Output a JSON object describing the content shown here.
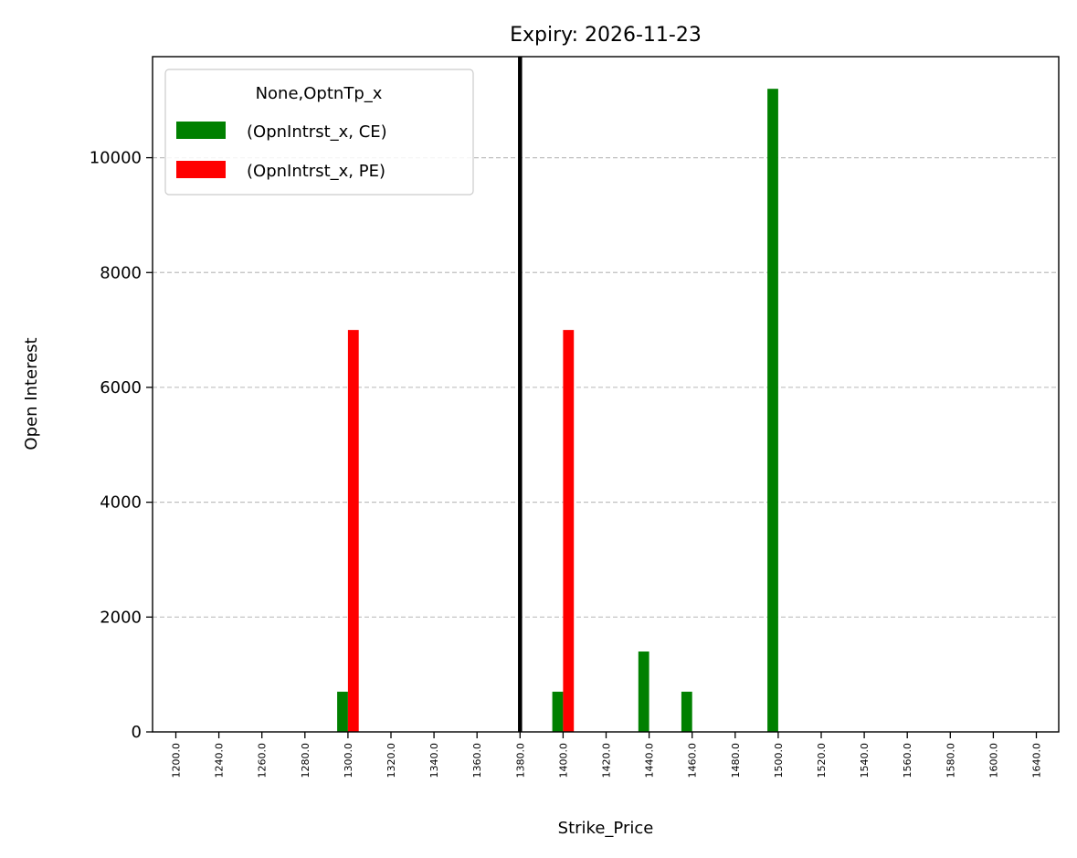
{
  "chart_data": {
    "type": "bar",
    "title": "Expiry: 2026-11-23",
    "xlabel": "Strike_Price",
    "ylabel": "Open Interest",
    "categories": [
      "1200.0",
      "1240.0",
      "1260.0",
      "1280.0",
      "1300.0",
      "1320.0",
      "1340.0",
      "1360.0",
      "1380.0",
      "1400.0",
      "1420.0",
      "1440.0",
      "1460.0",
      "1480.0",
      "1500.0",
      "1520.0",
      "1540.0",
      "1560.0",
      "1580.0",
      "1600.0",
      "1640.0"
    ],
    "series": [
      {
        "name": "(OpnIntrst_x, CE)",
        "color": "#008000",
        "values": [
          0,
          0,
          0,
          0,
          700,
          0,
          0,
          0,
          0,
          700,
          0,
          1400,
          700,
          0,
          11200,
          0,
          0,
          0,
          0,
          0,
          0
        ]
      },
      {
        "name": "(OpnIntrst_x, PE)",
        "color": "#ff0000",
        "values": [
          0,
          0,
          0,
          0,
          7000,
          0,
          0,
          0,
          0,
          7000,
          0,
          0,
          0,
          0,
          0,
          0,
          0,
          0,
          0,
          0,
          0
        ]
      }
    ],
    "legend_title": "None,OptnTp_x",
    "legend_position": "top-left",
    "ylim": [
      0,
      11760
    ],
    "yticks": [
      0,
      2000,
      4000,
      6000,
      8000,
      10000
    ],
    "ytick_labels": [
      "0",
      "2000",
      "4000",
      "6000",
      "8000",
      "10000"
    ],
    "grid": "y-dashed",
    "vertical_line": {
      "category": "1380.0",
      "color": "#000000"
    }
  }
}
